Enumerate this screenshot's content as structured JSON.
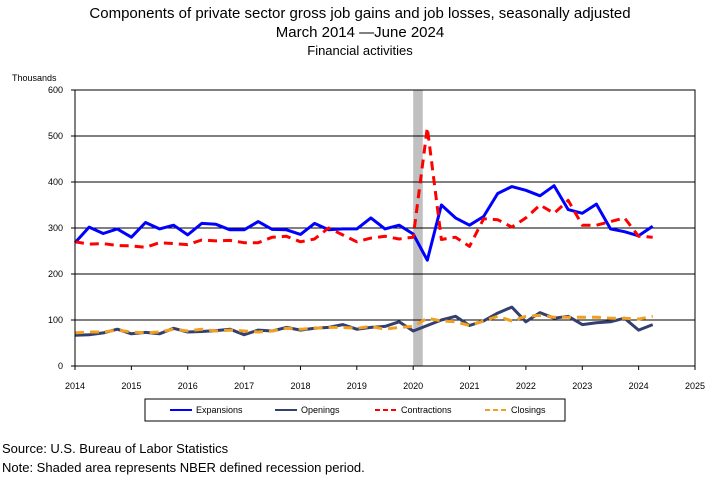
{
  "title_line1": "Components of private sector gross job gains and job losses, seasonally adjusted",
  "title_line2": "March 2014 —June 2024",
  "title_line3": "Financial activities",
  "source": "Source: U.S. Bureau of Labor Statistics",
  "note": "Note: Shaded area represents NBER defined recession period.",
  "chart_data": {
    "type": "line",
    "ylabel": "Thousands",
    "xlabel": "",
    "xlim": [
      2014,
      2025
    ],
    "ylim": [
      0,
      600
    ],
    "yticks": [
      0,
      100,
      200,
      300,
      400,
      500,
      600
    ],
    "xticks": [
      2014,
      2015,
      2016,
      2017,
      2018,
      2019,
      2020,
      2021,
      2022,
      2023,
      2024,
      2025
    ],
    "grid": "horizontal",
    "legend_position": "bottom",
    "recession_band": [
      2020.0,
      2020.17
    ],
    "x": [
      2014.0,
      2014.25,
      2014.5,
      2014.75,
      2015.0,
      2015.25,
      2015.5,
      2015.75,
      2016.0,
      2016.25,
      2016.5,
      2016.75,
      2017.0,
      2017.25,
      2017.5,
      2017.75,
      2018.0,
      2018.25,
      2018.5,
      2018.75,
      2019.0,
      2019.25,
      2019.5,
      2019.75,
      2020.0,
      2020.25,
      2020.5,
      2020.75,
      2021.0,
      2021.25,
      2021.5,
      2021.75,
      2022.0,
      2022.25,
      2022.5,
      2022.75,
      2023.0,
      2023.25,
      2023.5,
      2023.75,
      2024.0,
      2024.25
    ],
    "series": [
      {
        "name": "Expansions",
        "color": "#0000ff",
        "style": "solid",
        "values": [
          268,
          302,
          288,
          298,
          280,
          312,
          298,
          306,
          285,
          310,
          308,
          296,
          296,
          314,
          297,
          296,
          286,
          310,
          296,
          298,
          298,
          322,
          298,
          306,
          287,
          230,
          350,
          322,
          306,
          325,
          375,
          390,
          382,
          370,
          392,
          340,
          332,
          352,
          298,
          292,
          283,
          304
        ]
      },
      {
        "name": "Openings",
        "color": "#333f6e",
        "style": "solid",
        "values": [
          67,
          68,
          72,
          80,
          70,
          73,
          70,
          82,
          74,
          75,
          77,
          80,
          68,
          78,
          76,
          84,
          78,
          82,
          84,
          90,
          80,
          84,
          86,
          96,
          76,
          88,
          100,
          108,
          88,
          98,
          115,
          128,
          96,
          116,
          104,
          108,
          90,
          94,
          96,
          104,
          78,
          90
        ]
      },
      {
        "name": "Contractions",
        "color": "#ff0000",
        "style": "dashed",
        "values": [
          270,
          265,
          266,
          262,
          261,
          258,
          268,
          266,
          264,
          274,
          272,
          273,
          268,
          268,
          280,
          282,
          270,
          276,
          300,
          285,
          270,
          278,
          282,
          276,
          280,
          518,
          275,
          280,
          260,
          320,
          318,
          302,
          322,
          350,
          332,
          360,
          306,
          306,
          314,
          322,
          282,
          280
        ]
      },
      {
        "name": "Closings",
        "color": "#f0a020",
        "style": "dashed",
        "values": [
          72,
          74,
          74,
          78,
          74,
          72,
          74,
          80,
          76,
          80,
          76,
          78,
          76,
          74,
          76,
          82,
          80,
          82,
          84,
          84,
          82,
          86,
          80,
          84,
          86,
          104,
          98,
          96,
          88,
          98,
          108,
          98,
          108,
          110,
          106,
          106,
          106,
          106,
          104,
          104,
          102,
          108
        ]
      }
    ]
  }
}
